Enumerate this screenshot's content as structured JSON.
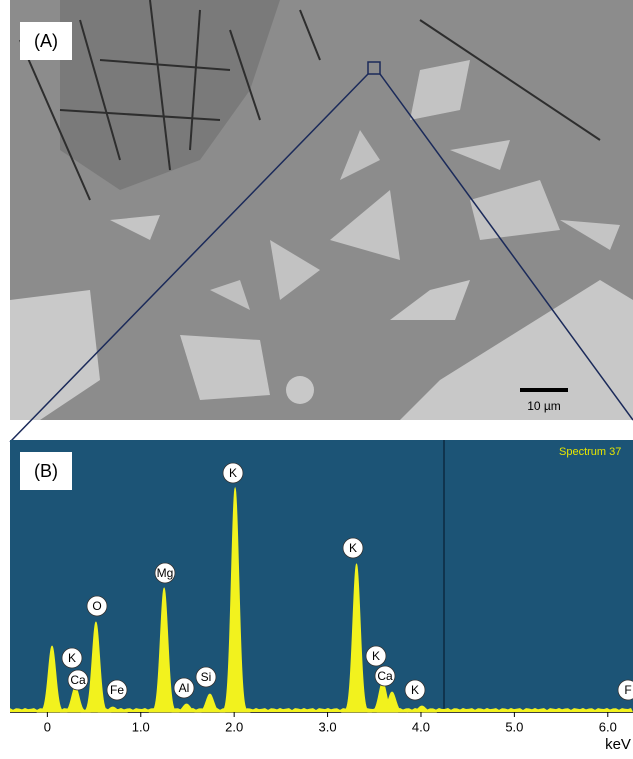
{
  "panel_a": {
    "label": "(A)",
    "scale_bar": "10 µm"
  },
  "chart_data": {
    "type": "spectrum",
    "panel_label": "(B)",
    "title": "Spectrum 37",
    "xlabel": "keV",
    "x": [
      0.05,
      0.3,
      0.52,
      0.7,
      1.25,
      1.49,
      1.74,
      2.01,
      3.31,
      3.59,
      3.69,
      4.01
    ],
    "values": [
      66,
      25,
      90,
      5,
      124,
      8,
      18,
      224,
      148,
      30,
      20,
      6
    ],
    "color": "#f2f21e",
    "xlim": [
      -0.4,
      6.27
    ],
    "ylim": [
      0,
      250
    ],
    "xticks": [
      0,
      {
        "value": 1,
        "label": "1.0"
      },
      {
        "value": 2,
        "label": "2.0"
      },
      {
        "value": 3,
        "label": "3.0"
      },
      {
        "value": 4,
        "label": "4.0"
      },
      {
        "value": 5,
        "label": "5.0"
      },
      {
        "value": 6,
        "label": "6.0"
      }
    ],
    "annotations": [
      "K",
      "Ca",
      "O",
      "Fe",
      "Mg",
      "Al",
      "Si",
      "K",
      "K",
      "K",
      "Ca",
      "K",
      "F"
    ]
  }
}
